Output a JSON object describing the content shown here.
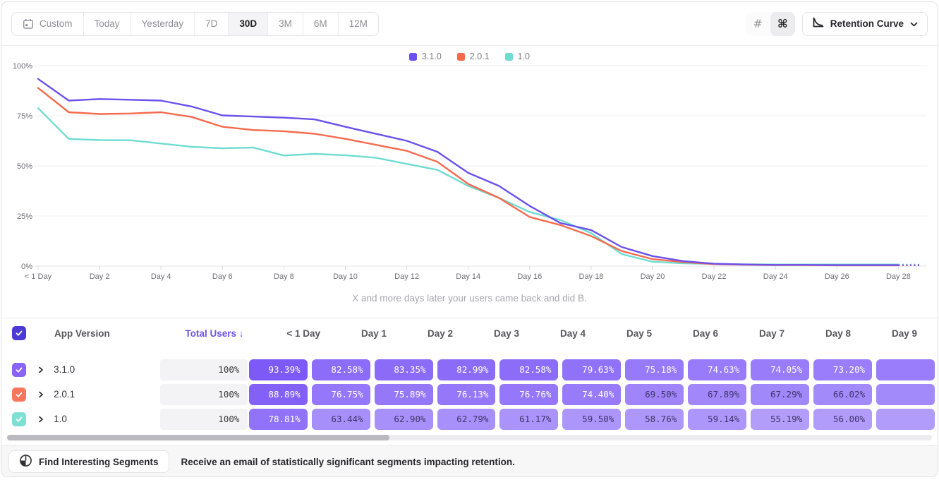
{
  "toolbar": {
    "date_ranges": [
      "Custom",
      "Today",
      "Yesterday",
      "7D",
      "30D",
      "3M",
      "6M",
      "12M"
    ],
    "selected_range": "30D",
    "view_toggle": {
      "hash": "#",
      "command": "⌘",
      "selected": "command"
    },
    "chart_type_label": "Retention Curve"
  },
  "chart_data": {
    "type": "line",
    "xlabel": "X and more days later your users came back and did B.",
    "ylabel": "",
    "ylim": [
      0,
      100
    ],
    "y_ticks": [
      0,
      25,
      50,
      75,
      100
    ],
    "y_tick_labels": [
      "0%",
      "25%",
      "50%",
      "75%",
      "100%"
    ],
    "x_tick_days": [
      0,
      2,
      4,
      6,
      8,
      10,
      12,
      14,
      16,
      18,
      20,
      22,
      24,
      26,
      28
    ],
    "x_tick_labels": [
      "< 1 Day",
      "Day 2",
      "Day 4",
      "Day 6",
      "Day 8",
      "Day 10",
      "Day 12",
      "Day 14",
      "Day 16",
      "Day 18",
      "Day 20",
      "Day 22",
      "Day 24",
      "Day 26",
      "Day 28"
    ],
    "grid": true,
    "legend_position": "top-center",
    "series": [
      {
        "name": "3.1.0",
        "color": "#6C50EC",
        "values": [
          93.39,
          82.58,
          83.35,
          82.99,
          82.58,
          79.63,
          75.18,
          74.63,
          74.05,
          73.2,
          69.5,
          66.0,
          62.5,
          57.0,
          46.5,
          40.0,
          30.0,
          21.5,
          18.0,
          9.5,
          5.0,
          2.5,
          1.2,
          0.8,
          0.6,
          0.6,
          0.5,
          0.5,
          0.5
        ]
      },
      {
        "name": "2.0.1",
        "color": "#F56A4D",
        "values": [
          88.89,
          76.75,
          75.89,
          76.13,
          76.76,
          74.4,
          69.5,
          67.89,
          67.29,
          66.02,
          63.5,
          60.5,
          57.5,
          52.0,
          41.0,
          34.0,
          24.5,
          20.5,
          15.0,
          7.5,
          3.5,
          2.0,
          1.0,
          0.7,
          0.5,
          0.5,
          0.4,
          0.4,
          0.4
        ]
      },
      {
        "name": "1.0",
        "color": "#6FDCD1",
        "values": [
          78.81,
          63.44,
          62.9,
          62.79,
          61.17,
          59.5,
          58.76,
          59.14,
          55.19,
          56.0,
          55.3,
          54.0,
          51.0,
          48.0,
          40.0,
          34.0,
          27.0,
          23.0,
          16.5,
          6.0,
          2.2,
          1.4,
          1.1,
          0.9,
          0.8,
          0.8,
          0.8,
          0.8,
          0.8
        ]
      }
    ]
  },
  "table": {
    "select_all_checked": true,
    "select_all_color": "#4B3AD6",
    "headers": {
      "app_version": "App Version",
      "total_users": "Total Users",
      "sort_arrow": "↓",
      "days": [
        "< 1 Day",
        "Day 1",
        "Day 2",
        "Day 3",
        "Day 4",
        "Day 5",
        "Day 6",
        "Day 7",
        "Day 8",
        "Day 9"
      ]
    },
    "cell_base_rgb": [
      116,
      78,
      248
    ],
    "rows": [
      {
        "name": "3.1.0",
        "checkbox_color": "#8A63F8",
        "checked": true,
        "total_users": "100%",
        "values": [
          "93.39%",
          "82.58%",
          "83.35%",
          "82.99%",
          "82.58%",
          "79.63%",
          "75.18%",
          "74.63%",
          "74.05%",
          "73.20%"
        ]
      },
      {
        "name": "2.0.1",
        "checkbox_color": "#F8765C",
        "checked": true,
        "total_users": "100%",
        "values": [
          "88.89%",
          "76.75%",
          "75.89%",
          "76.13%",
          "76.76%",
          "74.40%",
          "69.50%",
          "67.89%",
          "67.29%",
          "66.02%"
        ]
      },
      {
        "name": "1.0",
        "checkbox_color": "#7DE0D3",
        "checked": true,
        "total_users": "100%",
        "values": [
          "78.81%",
          "63.44%",
          "62.90%",
          "62.79%",
          "61.17%",
          "59.50%",
          "58.76%",
          "59.14%",
          "55.19%",
          "56.00%"
        ]
      }
    ]
  },
  "footer": {
    "button_label": "Find Interesting Segments",
    "message": "Receive an email of statistically significant segments impacting retention."
  },
  "icons": {
    "calendar": "calendar-icon",
    "hash": "hash-icon",
    "command": "command-icon",
    "retention_curve": "retention-curve-icon",
    "chevron_down": "chevron-down-icon",
    "row_expand": "chevron-right-icon",
    "checkmark": "check-icon",
    "segments": "segments-icon"
  }
}
